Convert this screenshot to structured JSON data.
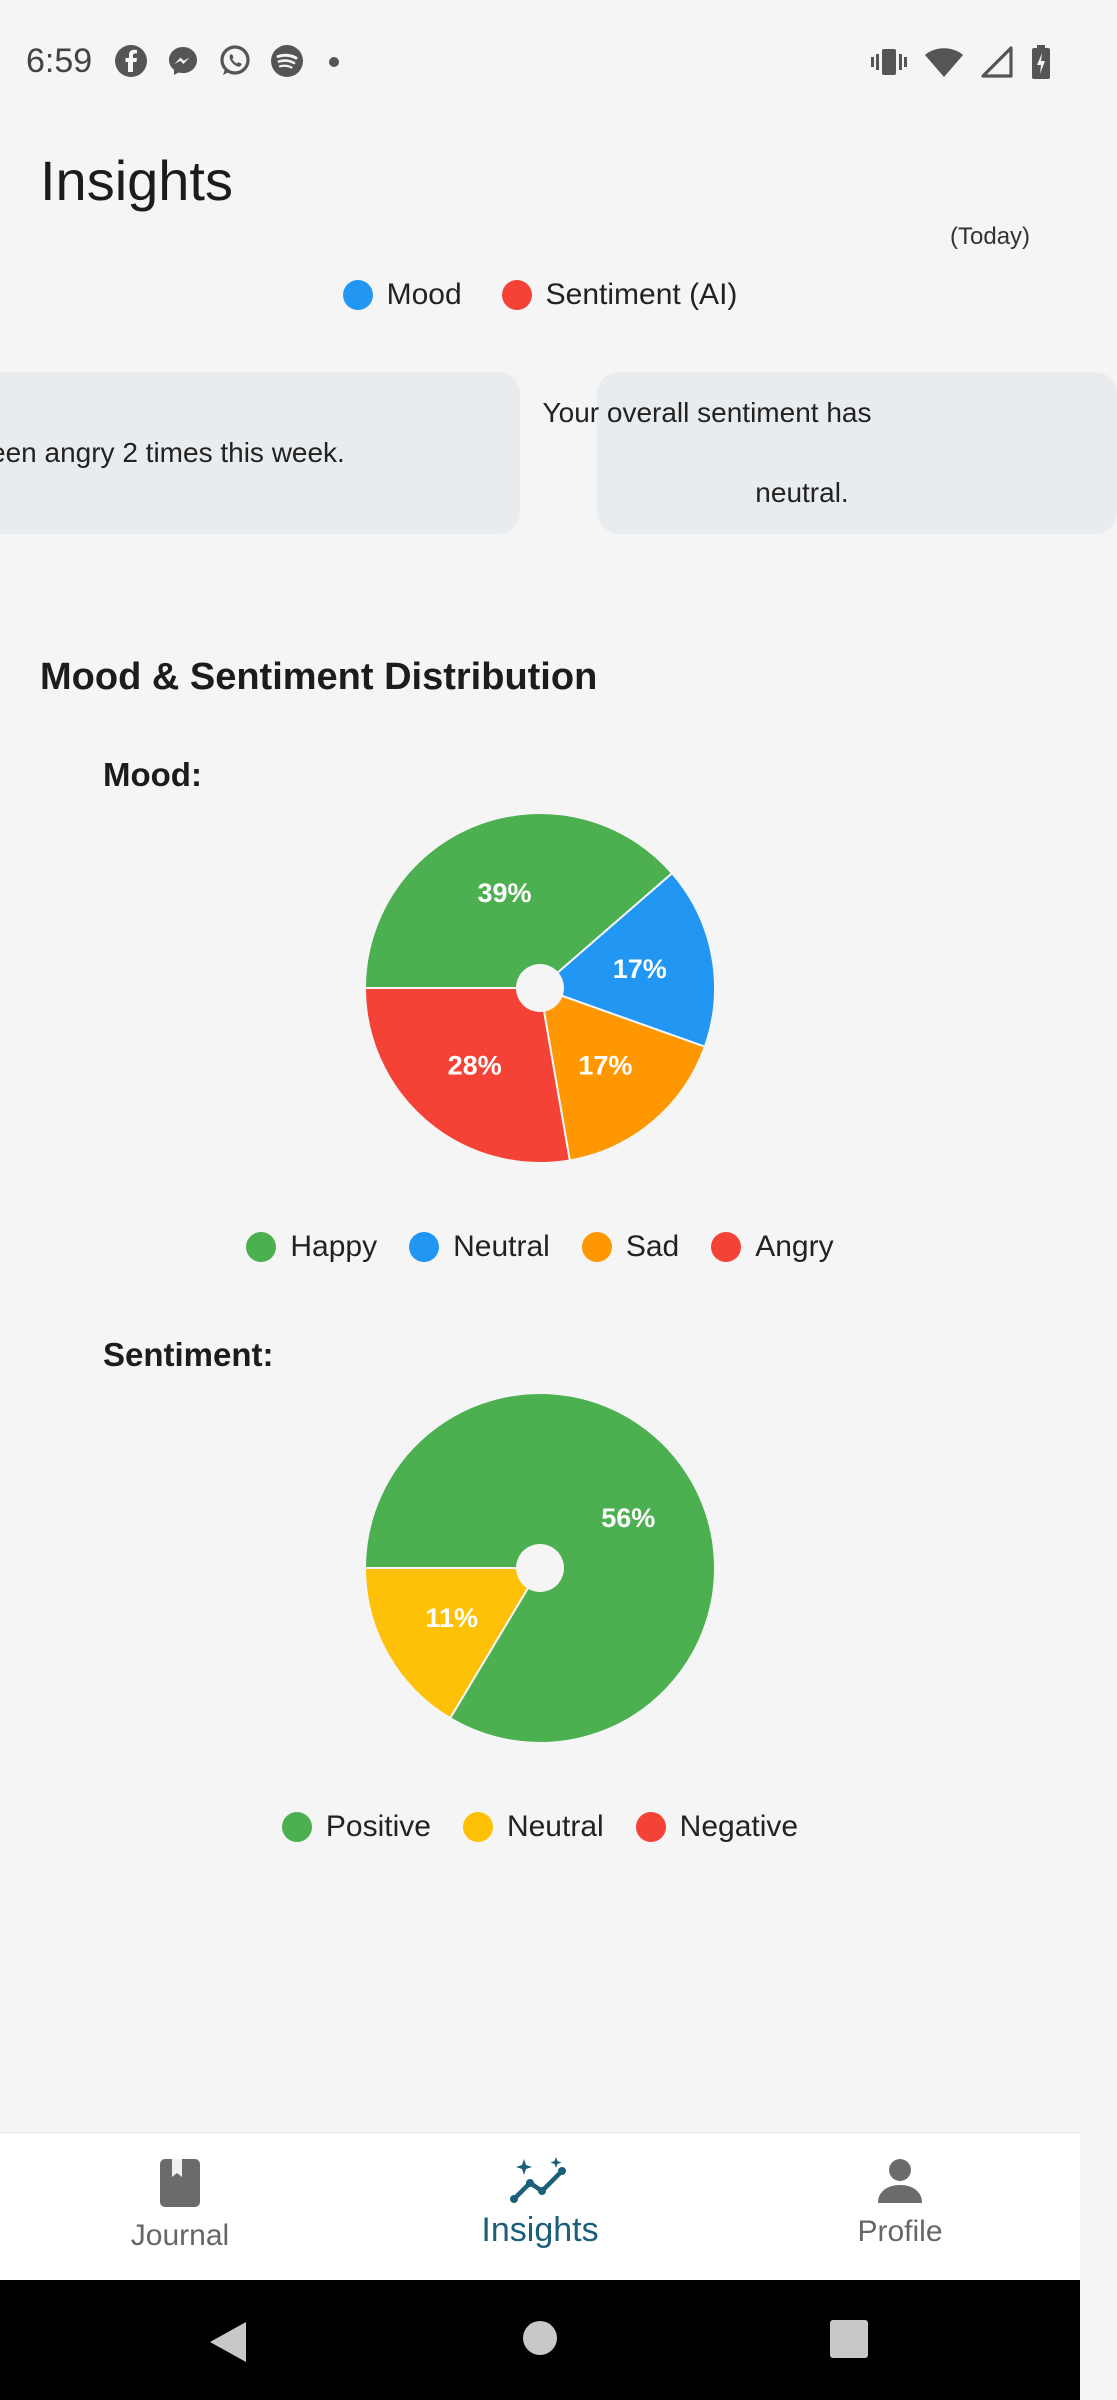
{
  "status_bar": {
    "time": "6:59",
    "notification_icons": [
      "facebook-icon",
      "messenger-icon",
      "whatsapp-icon",
      "spotify-icon",
      "more-dot-icon"
    ],
    "system_icons": [
      "vibrate-icon",
      "wifi-icon",
      "signal-icon",
      "battery-charging-icon"
    ]
  },
  "header": {
    "title": "Insights"
  },
  "trend_chart": {
    "cut_off_label": "(Today)",
    "legend": [
      {
        "label": "Mood",
        "color": "#2196F3"
      },
      {
        "label": "Sentiment (AI)",
        "color": "#F44336"
      }
    ]
  },
  "insight_cards": [
    {
      "text": "een angry 2 times this week."
    },
    {
      "line1": "Your overall sentiment has",
      "line2": "neutral."
    }
  ],
  "distribution": {
    "title": "Mood & Sentiment Distribution",
    "mood_label": "Mood:",
    "sentiment_label": "Sentiment:"
  },
  "chart_data": [
    {
      "type": "pie",
      "title": "Mood:",
      "categories": [
        "Happy",
        "Neutral",
        "Sad",
        "Angry"
      ],
      "values": [
        39,
        17,
        17,
        28
      ],
      "labels": [
        "39%",
        "17%",
        "17%",
        "28%"
      ],
      "colors": [
        "#4CAF50",
        "#2196F3",
        "#FF9800",
        "#F44336"
      ],
      "legend_placement": "bottom"
    },
    {
      "type": "pie",
      "title": "Sentiment:",
      "categories": [
        "Positive",
        "Neutral",
        "Negative"
      ],
      "values": [
        56,
        11,
        0
      ],
      "labels": [
        "56%",
        "11%",
        ""
      ],
      "colors": [
        "#4CAF50",
        "#FFC107",
        "#F44336"
      ],
      "legend_placement": "bottom"
    }
  ],
  "bottom_nav": {
    "items": [
      {
        "label": "Journal",
        "icon": "journal-book-icon",
        "active": false
      },
      {
        "label": "Insights",
        "icon": "insights-sparkle-chart-icon",
        "active": true
      },
      {
        "label": "Profile",
        "icon": "person-icon",
        "active": false
      }
    ],
    "active_color": "#1B5F7A"
  },
  "system_nav": {
    "buttons": [
      "back-button",
      "home-button",
      "recents-button"
    ]
  }
}
